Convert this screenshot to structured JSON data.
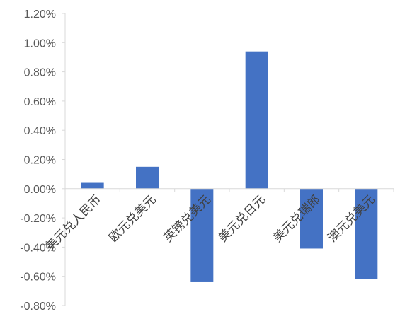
{
  "chart_data": {
    "type": "bar",
    "title": "",
    "xlabel": "",
    "ylabel": "",
    "categories": [
      "美元兑人民币",
      "欧元兑美元",
      "英镑兑美元",
      "美元兑日元",
      "美元兑瑞郎",
      "澳元兑美元"
    ],
    "values": [
      0.04,
      0.15,
      -0.64,
      0.94,
      -0.41,
      -0.62
    ],
    "ylim": [
      -0.8,
      1.2
    ],
    "yticks": [
      1.2,
      1.0,
      0.8,
      0.6,
      0.4,
      0.2,
      0.0,
      -0.2,
      -0.4,
      -0.6,
      -0.8
    ],
    "ytick_labels": [
      "1.20%",
      "1.00%",
      "0.80%",
      "0.60%",
      "0.40%",
      "0.20%",
      "0.00%",
      "-0.20%",
      "-0.40%",
      "-0.60%",
      "-0.80%"
    ],
    "bar_color": "#4472C4",
    "axis_color": "#D9D9D9",
    "grid": false,
    "legend": "none"
  }
}
